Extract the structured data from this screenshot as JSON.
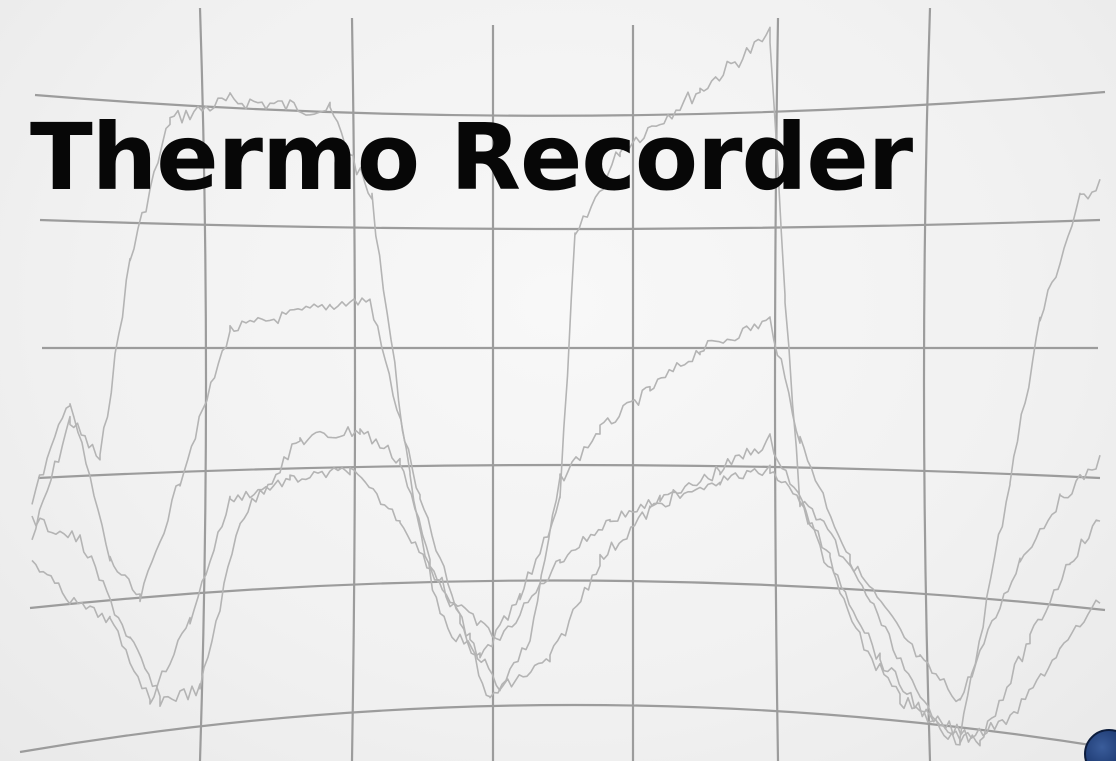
{
  "title": "Thermo Recorder",
  "colors": {
    "background": "#f3f3f3",
    "grid": "#9c9c9c",
    "traces": "#b4b4b4",
    "title": "#070707",
    "device_accent": "#1d3a72"
  },
  "decor": {
    "background": "recording-chart-grid",
    "corner_element": "device-edge"
  }
}
